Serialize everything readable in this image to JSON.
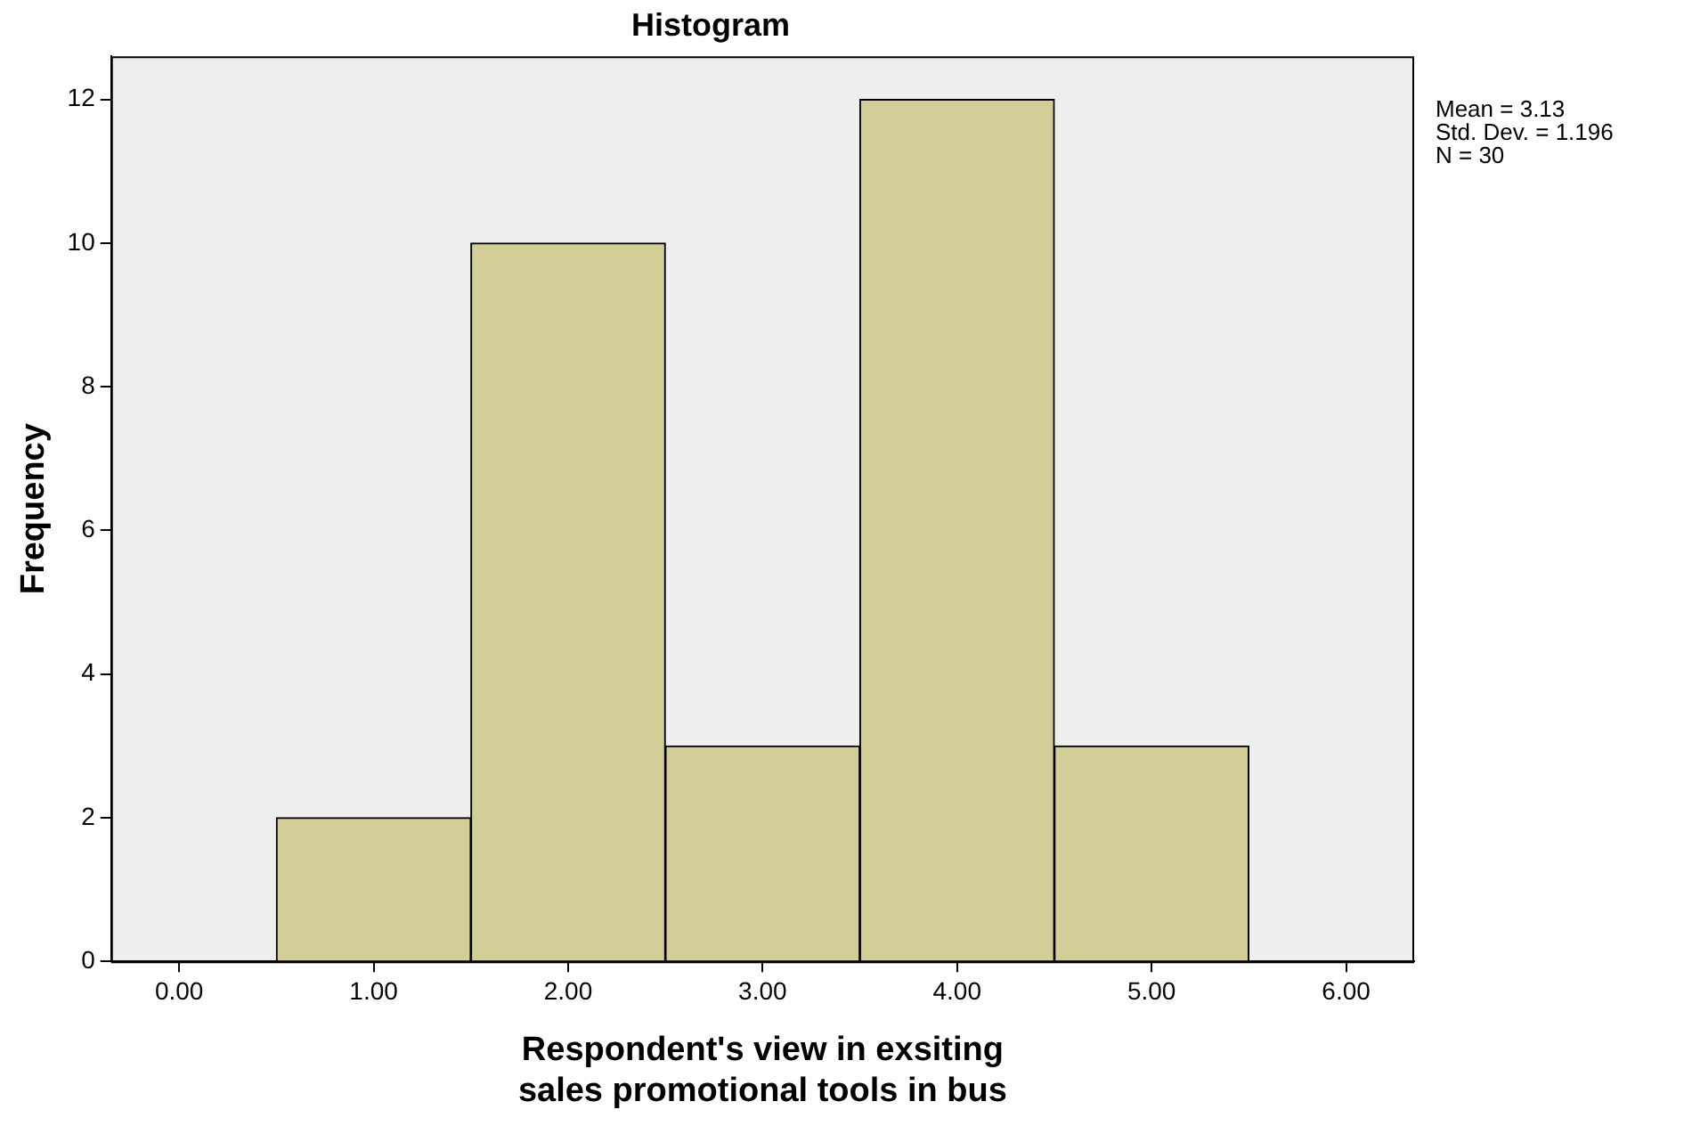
{
  "chart_data": {
    "type": "histogram",
    "title": "Histogram",
    "xlabel": "Respondent's view in exsiting sales promotional tools in bus",
    "ylabel": "Frequency",
    "bins": [
      0.5,
      1.5,
      2.5,
      3.5,
      4.5,
      5.5
    ],
    "values": [
      2,
      10,
      3,
      12,
      3
    ],
    "color": "#d3cd98",
    "xlim": [
      -0.35,
      6.35
    ],
    "xticks": [
      {
        "value": 0,
        "label": "0.00"
      },
      {
        "value": 1,
        "label": "1.00"
      },
      {
        "value": 2,
        "label": "2.00"
      },
      {
        "value": 3,
        "label": "3.00"
      },
      {
        "value": 4,
        "label": "4.00"
      },
      {
        "value": 5,
        "label": "5.00"
      },
      {
        "value": 6,
        "label": "6.00"
      }
    ],
    "ylim": [
      0,
      12.6
    ],
    "yticks": [
      0,
      2,
      4,
      6,
      8,
      10,
      12
    ],
    "grid": false,
    "legend": false,
    "annotations": [
      "Mean = 3.13",
      "Std. Dev. = 1.196",
      "N = 30"
    ]
  }
}
